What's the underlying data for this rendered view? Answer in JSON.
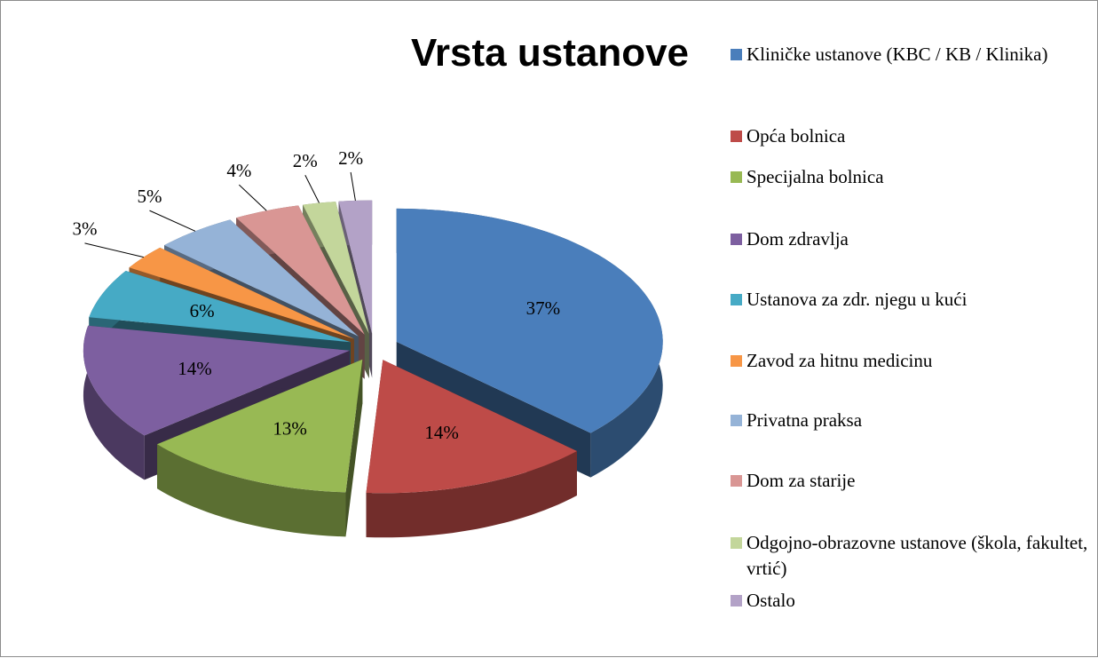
{
  "chart_data": {
    "type": "pie",
    "title": "Vrsta ustanove",
    "categories": [
      "Kliničke ustanove (KBC / KB / Klinika)",
      "Opća bolnica",
      "Specijalna bolnica",
      "Dom zdravlja",
      "Ustanova za zdr. njegu u kući",
      "Zavod za hitnu medicinu",
      "Privatna praksa",
      "Dom za starije",
      "Odgojno-obrazovne ustanove (škola, fakultet, vrtić)",
      "Ostalo"
    ],
    "values": [
      37,
      14,
      13,
      14,
      6,
      3,
      5,
      4,
      2,
      2
    ],
    "value_labels": [
      "37%",
      "14%",
      "13%",
      "14%",
      "6%",
      "3%",
      "5%",
      "4%",
      "2%",
      "2%"
    ],
    "colors": [
      "#4a7ebb",
      "#be4b48",
      "#98b954",
      "#7d5fa0",
      "#46aac5",
      "#f79646",
      "#95b3d7",
      "#d99694",
      "#c3d69b",
      "#b3a2c7"
    ],
    "legend": "right"
  }
}
